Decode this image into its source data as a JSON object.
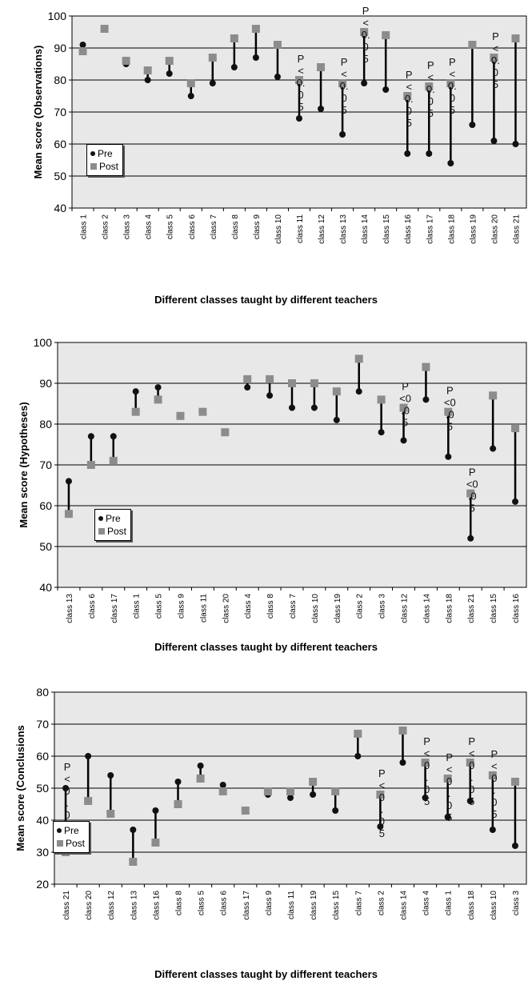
{
  "chart_data": [
    {
      "type": "dumbbell",
      "ylabel": "Mean score (Observations)",
      "xlabel": "Different classes taught by different teachers",
      "ylim": [
        40,
        100
      ],
      "yticks": [
        40,
        50,
        60,
        70,
        80,
        90,
        100
      ],
      "grid": true,
      "legend": [
        "Pre",
        "Post"
      ],
      "legend_position": "left",
      "categories": [
        "class 1",
        "class 2",
        "class 3",
        "class 4",
        "class 5",
        "class 6",
        "class 7",
        "class 8",
        "class 9",
        "class 10",
        "class 11",
        "class 12",
        "class 13",
        "class 14",
        "class 15",
        "class 16",
        "class 17",
        "class 18",
        "class 19",
        "class 20",
        "class 21"
      ],
      "series": [
        {
          "name": "Pre",
          "values": [
            91,
            96,
            85,
            80,
            82,
            75,
            79,
            84,
            87,
            81,
            68,
            71,
            63,
            79,
            77,
            57,
            57,
            54,
            66,
            61,
            60
          ]
        },
        {
          "name": "Post",
          "values": [
            89,
            96,
            86,
            83,
            86,
            79,
            87,
            93,
            96,
            91,
            80,
            84,
            79,
            95,
            94,
            75,
            78,
            79,
            91,
            87,
            93
          ]
        }
      ],
      "annotations": [
        {
          "category": "class 11",
          "lines": [
            "P",
            "<",
            "0.",
            "0",
            "5"
          ]
        },
        {
          "category": "class 13",
          "lines": [
            "P",
            "<",
            "0.",
            "0",
            "5"
          ]
        },
        {
          "category": "class 14",
          "lines": [
            "P",
            "<",
            "0.",
            "0",
            "5"
          ]
        },
        {
          "category": "class 16",
          "lines": [
            "P",
            "<",
            "0.",
            "0",
            "5"
          ]
        },
        {
          "category": "class 17",
          "lines": [
            "P",
            "<",
            "0.",
            "0",
            "5"
          ]
        },
        {
          "category": "class 18",
          "lines": [
            "P",
            "<",
            "0.",
            "0",
            "5"
          ]
        },
        {
          "category": "class 20",
          "lines": [
            "P",
            "<",
            "0.",
            "0",
            "5"
          ]
        }
      ]
    },
    {
      "type": "dumbbell",
      "ylabel": "Mean score (Hypotheses)",
      "xlabel": "Different classes taught by different teachers",
      "ylim": [
        40,
        100
      ],
      "yticks": [
        40,
        50,
        60,
        70,
        80,
        90,
        100
      ],
      "grid": true,
      "legend": [
        "Pre",
        "Post"
      ],
      "legend_position": "left",
      "categories": [
        "class 13",
        "class 6",
        "class 17",
        "class 1",
        "class 5",
        "class 9",
        "class 11",
        "class 20",
        "class 4",
        "class 8",
        "class 7",
        "class 10",
        "class 19",
        "class 2",
        "class 3",
        "class 12",
        "class 14",
        "class 18",
        "class 21",
        "class 15",
        "class 16"
      ],
      "series": [
        {
          "name": "Pre",
          "values": [
            66,
            77,
            77,
            88,
            89,
            82,
            83,
            78,
            89,
            87,
            84,
            84,
            81,
            88,
            78,
            76,
            86,
            72,
            52,
            74,
            61
          ]
        },
        {
          "name": "Post",
          "values": [
            58,
            70,
            71,
            83,
            86,
            82,
            83,
            78,
            91,
            91,
            90,
            90,
            88,
            96,
            86,
            84,
            94,
            83,
            63,
            87,
            79
          ]
        }
      ],
      "annotations": [
        {
          "category": "class 12",
          "lines": [
            "P",
            "<0",
            ".0",
            "5"
          ]
        },
        {
          "category": "class 18",
          "lines": [
            "P",
            "<0",
            ".0",
            "5"
          ]
        },
        {
          "category": "class 21",
          "lines": [
            "P",
            "<0",
            ".0",
            "5"
          ]
        }
      ]
    },
    {
      "type": "dumbbell",
      "ylabel": "Mean score (Conclusions",
      "xlabel": "Different classes taught by different teachers",
      "ylim": [
        20,
        80
      ],
      "yticks": [
        20,
        30,
        40,
        50,
        60,
        70,
        80
      ],
      "grid": true,
      "legend": [
        "Pre",
        "Post"
      ],
      "legend_position": "left",
      "categories": [
        "class 21",
        "class 20",
        "class 12",
        "class 13",
        "class 16",
        "class 8",
        "class 5",
        "class 6",
        "class 17",
        "class 9",
        "class 11",
        "class 19",
        "class 15",
        "class 7",
        "class 2",
        "class 14",
        "class 4",
        "class 1",
        "class 18",
        "class 10",
        "class 3"
      ],
      "series": [
        {
          "name": "Pre",
          "values": [
            50,
            60,
            54,
            37,
            43,
            52,
            57,
            51,
            43,
            48,
            47,
            48,
            43,
            60,
            38,
            58,
            47,
            41,
            46,
            37,
            32
          ]
        },
        {
          "name": "Post",
          "values": [
            30,
            46,
            42,
            27,
            33,
            45,
            53,
            49,
            43,
            49,
            49,
            52,
            49,
            67,
            48,
            68,
            58,
            53,
            58,
            54,
            52
          ]
        }
      ],
      "annotations": [
        {
          "category": "class 21",
          "lines": [
            "P",
            "<",
            "0",
            ".",
            "0",
            "5"
          ]
        },
        {
          "category": "class 2",
          "lines": [
            "P",
            "<",
            "0",
            ".",
            "0",
            "5"
          ]
        },
        {
          "category": "class 4",
          "lines": [
            "P",
            "<",
            "0",
            ".",
            "0",
            "5"
          ]
        },
        {
          "category": "class 1",
          "lines": [
            "P",
            "<",
            "0",
            ".",
            "0",
            "5"
          ]
        },
        {
          "category": "class 18",
          "lines": [
            "P",
            "<",
            "0",
            ".",
            "0",
            "5"
          ]
        },
        {
          "category": "class 10",
          "lines": [
            "P",
            "<",
            "0",
            ".",
            "0",
            "5"
          ]
        }
      ]
    }
  ],
  "colors": {
    "pre": "#111111",
    "post": "#8c8c8c",
    "plot_bg": "#e8e8e8",
    "grid": "#000000"
  }
}
